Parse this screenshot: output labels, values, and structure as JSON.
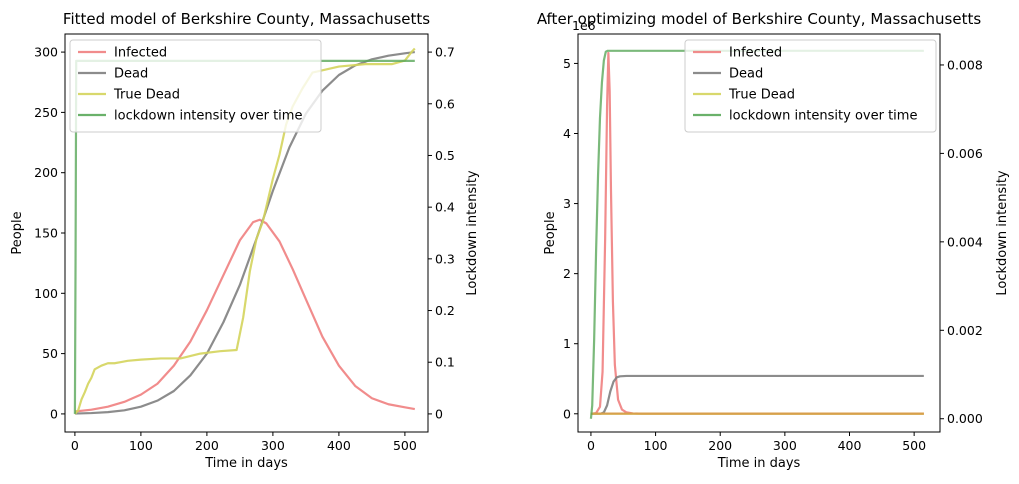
{
  "chart_data": [
    {
      "type": "line",
      "title": "Fitted model of Berkshire County, Massachusetts",
      "xlabel": "Time in days",
      "ylabel": "People",
      "y2label": "Lockdown intensity",
      "xlim": [
        -15,
        535
      ],
      "ylim": [
        -15,
        315
      ],
      "y2lim": [
        -0.035,
        0.735
      ],
      "xticks": [
        0,
        100,
        200,
        300,
        400,
        500
      ],
      "yticks": [
        0,
        50,
        100,
        150,
        200,
        250,
        300
      ],
      "y2ticks": [
        0.0,
        0.1,
        0.2,
        0.3,
        0.4,
        0.5,
        0.6,
        0.7
      ],
      "legend_position": "upper left",
      "series": [
        {
          "name": "Infected",
          "color": "#f08080",
          "axis": "left",
          "x": [
            0,
            25,
            50,
            75,
            100,
            125,
            150,
            175,
            200,
            225,
            250,
            270,
            280,
            290,
            310,
            330,
            350,
            375,
            400,
            425,
            450,
            475,
            500,
            515
          ],
          "y": [
            2,
            3.5,
            6,
            10,
            16,
            25,
            40,
            60,
            86,
            115,
            144,
            159,
            161,
            158,
            143,
            120,
            95,
            64,
            40,
            23,
            13,
            8,
            5.5,
            4
          ]
        },
        {
          "name": "Dead",
          "color": "#808080",
          "axis": "left",
          "x": [
            0,
            25,
            50,
            75,
            100,
            125,
            150,
            175,
            200,
            225,
            250,
            275,
            300,
            325,
            350,
            375,
            400,
            425,
            450,
            475,
            500,
            515
          ],
          "y": [
            0.3,
            0.7,
            1.5,
            3,
            6,
            11,
            19,
            32,
            50,
            76,
            107,
            145,
            185,
            221,
            249,
            268,
            281,
            289,
            294,
            297,
            299,
            300
          ]
        },
        {
          "name": "True Dead",
          "color": "#d4d45c",
          "axis": "left",
          "x": [
            0,
            5,
            10,
            15,
            20,
            25,
            30,
            40,
            50,
            60,
            70,
            80,
            100,
            130,
            160,
            190,
            220,
            245,
            255,
            265,
            275,
            285,
            300,
            310,
            320,
            330,
            345,
            360,
            400,
            440,
            480,
            500,
            510,
            515
          ],
          "y": [
            0,
            3,
            12,
            18,
            25,
            30,
            37,
            40,
            42,
            42,
            43,
            44,
            45,
            46,
            46,
            50,
            52,
            53,
            80,
            118,
            145,
            160,
            195,
            215,
            240,
            255,
            270,
            283,
            288,
            290,
            290,
            293,
            300,
            303
          ]
        },
        {
          "name": "lockdown intensity over time",
          "color": "#5aa85a",
          "axis": "right",
          "x": [
            0,
            1,
            2,
            515
          ],
          "y": [
            0.0,
            0.3,
            0.683,
            0.683
          ]
        }
      ]
    },
    {
      "type": "line",
      "title": "After optimizing model of Berkshire County, Massachusetts",
      "xlabel": "Time in days",
      "ylabel": "People",
      "y2label": "Lockdown intensity",
      "y_scale_label": "1e6",
      "xlim": [
        -20,
        540
      ],
      "ylim": [
        -0.26,
        5.42
      ],
      "y2lim": [
        -0.0003,
        0.0087
      ],
      "xticks": [
        0,
        100,
        200,
        300,
        400,
        500
      ],
      "yticks": [
        0,
        1,
        2,
        3,
        4,
        5
      ],
      "y2ticks": [
        0.0,
        0.002,
        0.004,
        0.006,
        0.008
      ],
      "y2tick_labels": [
        "0.000",
        "0.002",
        "0.004",
        "0.006",
        "0.008"
      ],
      "legend_position": "upper right",
      "series": [
        {
          "name": "Infected",
          "color": "#f08080",
          "axis": "left",
          "x": [
            0,
            8,
            14,
            18,
            22,
            25,
            27,
            29,
            31,
            34,
            37,
            42,
            48,
            55,
            65,
            80,
            515
          ],
          "y": [
            0,
            0.01,
            0.1,
            0.6,
            2.5,
            4.4,
            5.15,
            4.6,
            3.2,
            1.6,
            0.7,
            0.2,
            0.06,
            0.02,
            0.005,
            0,
            0
          ]
        },
        {
          "name": "Dead",
          "color": "#808080",
          "axis": "left",
          "x": [
            0,
            15,
            20,
            25,
            30,
            35,
            40,
            45,
            55,
            70,
            515
          ],
          "y": [
            0,
            0.0,
            0.02,
            0.12,
            0.32,
            0.46,
            0.52,
            0.535,
            0.54,
            0.54,
            0.54
          ]
        },
        {
          "name": "True Dead",
          "color": "#d4d45c",
          "axis": "left",
          "x": [
            0,
            515
          ],
          "y": [
            0.0003,
            0.0003
          ]
        },
        {
          "name": "lockdown intensity over time",
          "color": "#5aa85a",
          "axis": "right",
          "x": [
            0,
            2,
            5,
            8,
            11,
            14,
            17,
            20,
            23,
            26,
            29,
            515
          ],
          "y": [
            0.0,
            0.0003,
            0.0018,
            0.0038,
            0.0055,
            0.0068,
            0.0076,
            0.0081,
            0.0083,
            0.00832,
            0.00832,
            0.00832
          ]
        },
        {
          "name": "",
          "color": "#d89a4a",
          "axis": "left",
          "x": [
            0,
            515
          ],
          "y": [
            0.003,
            0.003
          ]
        }
      ]
    }
  ]
}
